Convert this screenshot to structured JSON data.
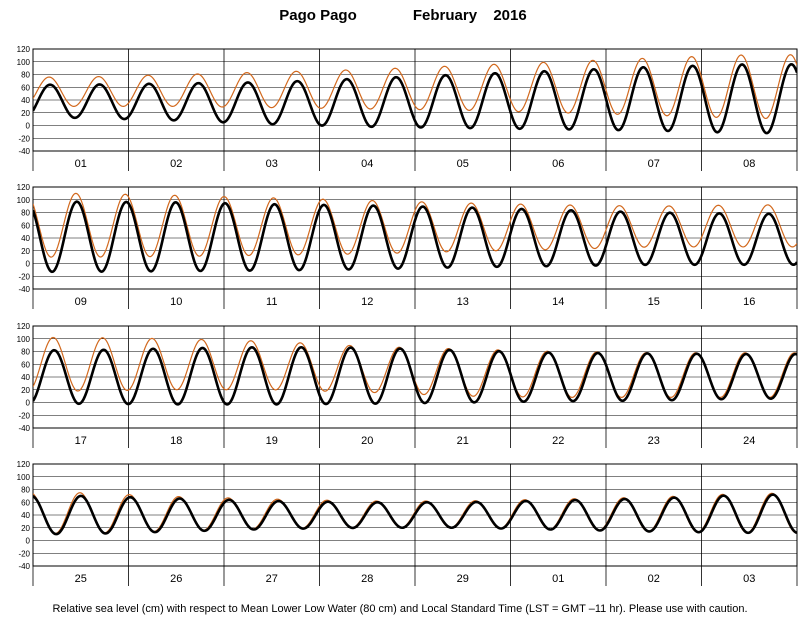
{
  "title": {
    "station": "Pago Pago",
    "month": "February",
    "year": "2016"
  },
  "footer": "Relative sea level (cm) with respect to Mean Lower Low Water (80 cm) and Local Standard Time (LST = GMT –11 hr). Please use with caution.",
  "colors": {
    "observed": "#000000",
    "predicted": "#d2691e",
    "grid": "#000000"
  },
  "chart_data": [
    {
      "type": "line",
      "days": [
        "01",
        "02",
        "03",
        "04",
        "05",
        "06",
        "07",
        "08"
      ],
      "yticks": [
        120,
        100,
        80,
        60,
        40,
        20,
        0,
        -20,
        -40
      ],
      "ylim": [
        -40,
        120
      ],
      "series": [
        {
          "key": "observed",
          "mean": [
            38,
            37,
            35,
            36,
            38,
            40,
            42,
            42
          ],
          "amp": [
            26,
            29,
            33,
            38,
            42,
            46,
            50,
            54
          ]
        },
        {
          "key": "predicted",
          "mean": [
            53,
            55,
            56,
            57,
            59,
            60,
            61,
            61
          ],
          "amp": [
            23,
            25,
            28,
            31,
            35,
            40,
            45,
            50
          ]
        }
      ]
    },
    {
      "type": "line",
      "days": [
        "09",
        "10",
        "11",
        "12",
        "13",
        "14",
        "15",
        "16"
      ],
      "yticks": [
        120,
        100,
        80,
        60,
        40,
        20,
        0,
        -20,
        -40
      ],
      "ylim": [
        -40,
        120
      ],
      "series": [
        {
          "key": "observed",
          "mean": [
            42,
            42,
            41,
            41,
            41,
            40,
            39,
            38
          ],
          "amp": [
            55,
            54,
            52,
            50,
            47,
            44,
            41,
            40
          ]
        },
        {
          "key": "predicted",
          "mean": [
            60,
            59,
            58,
            57,
            57,
            57,
            58,
            59
          ],
          "amp": [
            50,
            48,
            45,
            42,
            38,
            35,
            32,
            33
          ]
        }
      ]
    },
    {
      "type": "line",
      "days": [
        "17",
        "18",
        "19",
        "20",
        "21",
        "22",
        "23",
        "24"
      ],
      "yticks": [
        120,
        100,
        80,
        60,
        40,
        20,
        0,
        -20,
        -40
      ],
      "ylim": [
        -40,
        120
      ],
      "series": [
        {
          "key": "observed",
          "mean": [
            40,
            41,
            42,
            42,
            41,
            40,
            40,
            41
          ],
          "amp": [
            42,
            44,
            45,
            44,
            41,
            38,
            37,
            35
          ]
        },
        {
          "key": "predicted",
          "mean": [
            60,
            60,
            58,
            52,
            47,
            44,
            43,
            43
          ],
          "amp": [
            42,
            40,
            38,
            36,
            37,
            36,
            35,
            35
          ]
        }
      ]
    },
    {
      "type": "line",
      "days": [
        "25",
        "26",
        "27",
        "28",
        "29",
        "01",
        "02",
        "03"
      ],
      "yticks": [
        120,
        100,
        80,
        60,
        40,
        20,
        0,
        -20,
        -40
      ],
      "ylim": [
        -40,
        120
      ],
      "series": [
        {
          "key": "observed",
          "mean": [
            40,
            40,
            40,
            40,
            40,
            40,
            40,
            42
          ],
          "amp": [
            30,
            26,
            22,
            20,
            20,
            23,
            26,
            30
          ]
        },
        {
          "key": "predicted",
          "mean": [
            43,
            42,
            42,
            41,
            41,
            41,
            41,
            43
          ],
          "amp": [
            32,
            27,
            23,
            21,
            21,
            24,
            27,
            31
          ]
        }
      ]
    }
  ]
}
